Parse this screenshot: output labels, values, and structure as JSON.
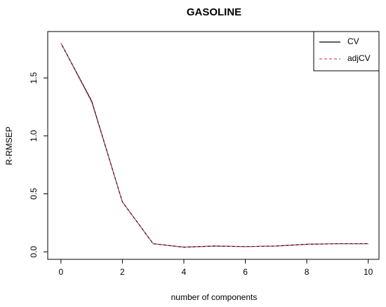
{
  "chart_data": {
    "type": "line",
    "title": "GASOLINE",
    "x_label": "number of components",
    "y_label": "R-RMSEP",
    "x": [
      0,
      1,
      2,
      3,
      4,
      5,
      6,
      7,
      8,
      9,
      10
    ],
    "series": [
      {
        "name": "CV",
        "color": "#000000",
        "dash": "solid",
        "values": [
          1.8,
          1.3,
          0.43,
          0.07,
          0.04,
          0.05,
          0.045,
          0.05,
          0.065,
          0.07,
          0.07
        ]
      },
      {
        "name": "adjCV",
        "color": "#df536b",
        "dash": "dashed",
        "values": [
          1.8,
          1.29,
          0.43,
          0.07,
          0.04,
          0.05,
          0.045,
          0.05,
          0.065,
          0.07,
          0.07
        ]
      }
    ],
    "xlim": [
      -0.43,
      10.35
    ],
    "ylim": [
      -0.065,
      1.9
    ],
    "xticks": [
      0,
      2,
      4,
      6,
      8,
      10
    ],
    "yticks": [
      {
        "value": 0,
        "label": "0.0"
      },
      0.5,
      {
        "value": 1,
        "label": "1.0"
      },
      1.5
    ],
    "legend": "top-right"
  }
}
